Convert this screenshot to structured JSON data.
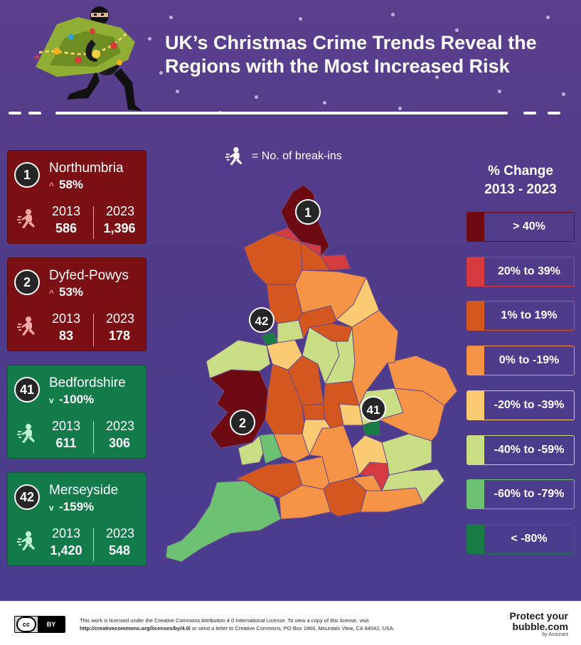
{
  "title": "UK’s Christmas Crime Trends Reveal the Regions with the Most Increased Risk",
  "key_note": "= No. of break-ins",
  "legend": {
    "title_line1": "% Change",
    "title_line2": "2013 - 2023",
    "items": [
      {
        "label": "> 40%",
        "color": "#6e0b12"
      },
      {
        "label": "20% to 39%",
        "color": "#d53a3f"
      },
      {
        "label": "1% to 19%",
        "color": "#d4571f"
      },
      {
        "label": "0% to -19%",
        "color": "#f59446"
      },
      {
        "label": "-20% to -39%",
        "color": "#fbcb73"
      },
      {
        "label": "-40% to -59%",
        "color": "#c9dd85"
      },
      {
        "label": "-60% to -79%",
        "color": "#6cc272"
      },
      {
        "label": "< -80%",
        "color": "#187b44"
      }
    ]
  },
  "cards": [
    {
      "rank": "1",
      "region": "Northumbria",
      "change": "58%",
      "direction": "up",
      "y1": "2013",
      "v1": "586",
      "y2": "2023",
      "v2": "1,396",
      "theme": "red"
    },
    {
      "rank": "2",
      "region": "Dyfed-Powys",
      "change": "53%",
      "direction": "up",
      "y1": "2013",
      "v1": "83",
      "y2": "2023",
      "v2": "178",
      "theme": "red"
    },
    {
      "rank": "41",
      "region": "Bedfordshire",
      "change": "-100%",
      "direction": "down",
      "y1": "2013",
      "v1": "611",
      "y2": "2023",
      "v2": "306",
      "theme": "green"
    },
    {
      "rank": "42",
      "region": "Merseyside",
      "change": "-159%",
      "direction": "down",
      "y1": "2013",
      "v1": "1,420",
      "y2": "2023",
      "v2": "548",
      "theme": "green"
    }
  ],
  "map_markers": [
    "1",
    "42",
    "41",
    "2"
  ],
  "footer": {
    "license_line1": "This work is licensed under the Creative Commons Attribution 4.0 International License. To view a copy of this license, visit",
    "license_link": "http://creativecommons.org/licenses/by/4.0/",
    "license_line2": " or send a letter to Creative Commons, PO Box 1866, Mountain View, CA 94042, USA.",
    "cc_label": "cc",
    "cc_by": "BY",
    "brand_line1": "Protect your",
    "brand_line2": "bubble.com",
    "brand_line3": "by Assurant"
  },
  "colors": {
    "background": "#4f3b8a",
    "card_red": "#7b1014",
    "card_green": "#137a4a"
  },
  "icons": [
    "burglar-icon",
    "thief-with-christmas-tree-illustration",
    "creative-commons-icon"
  ]
}
